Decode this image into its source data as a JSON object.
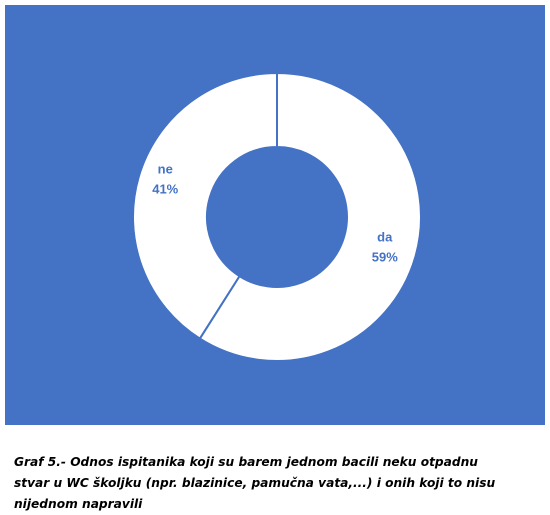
{
  "chart_data": {
    "type": "pie",
    "donut": true,
    "categories": [
      "da",
      "ne"
    ],
    "values": [
      59,
      41
    ],
    "value_labels": [
      "59%",
      "41%"
    ],
    "colors": [
      "#ffffff",
      "#ffffff"
    ],
    "background": "#4472c4",
    "label_color": "#4472c4",
    "caption": "Graf 5.- Odnos ispitanika koji su barem jednom bacili neku otpadnu stvar u WC školjku (npr. blazinice, pamučna vata,...) i onih koji to nisu nijednom napravili"
  }
}
